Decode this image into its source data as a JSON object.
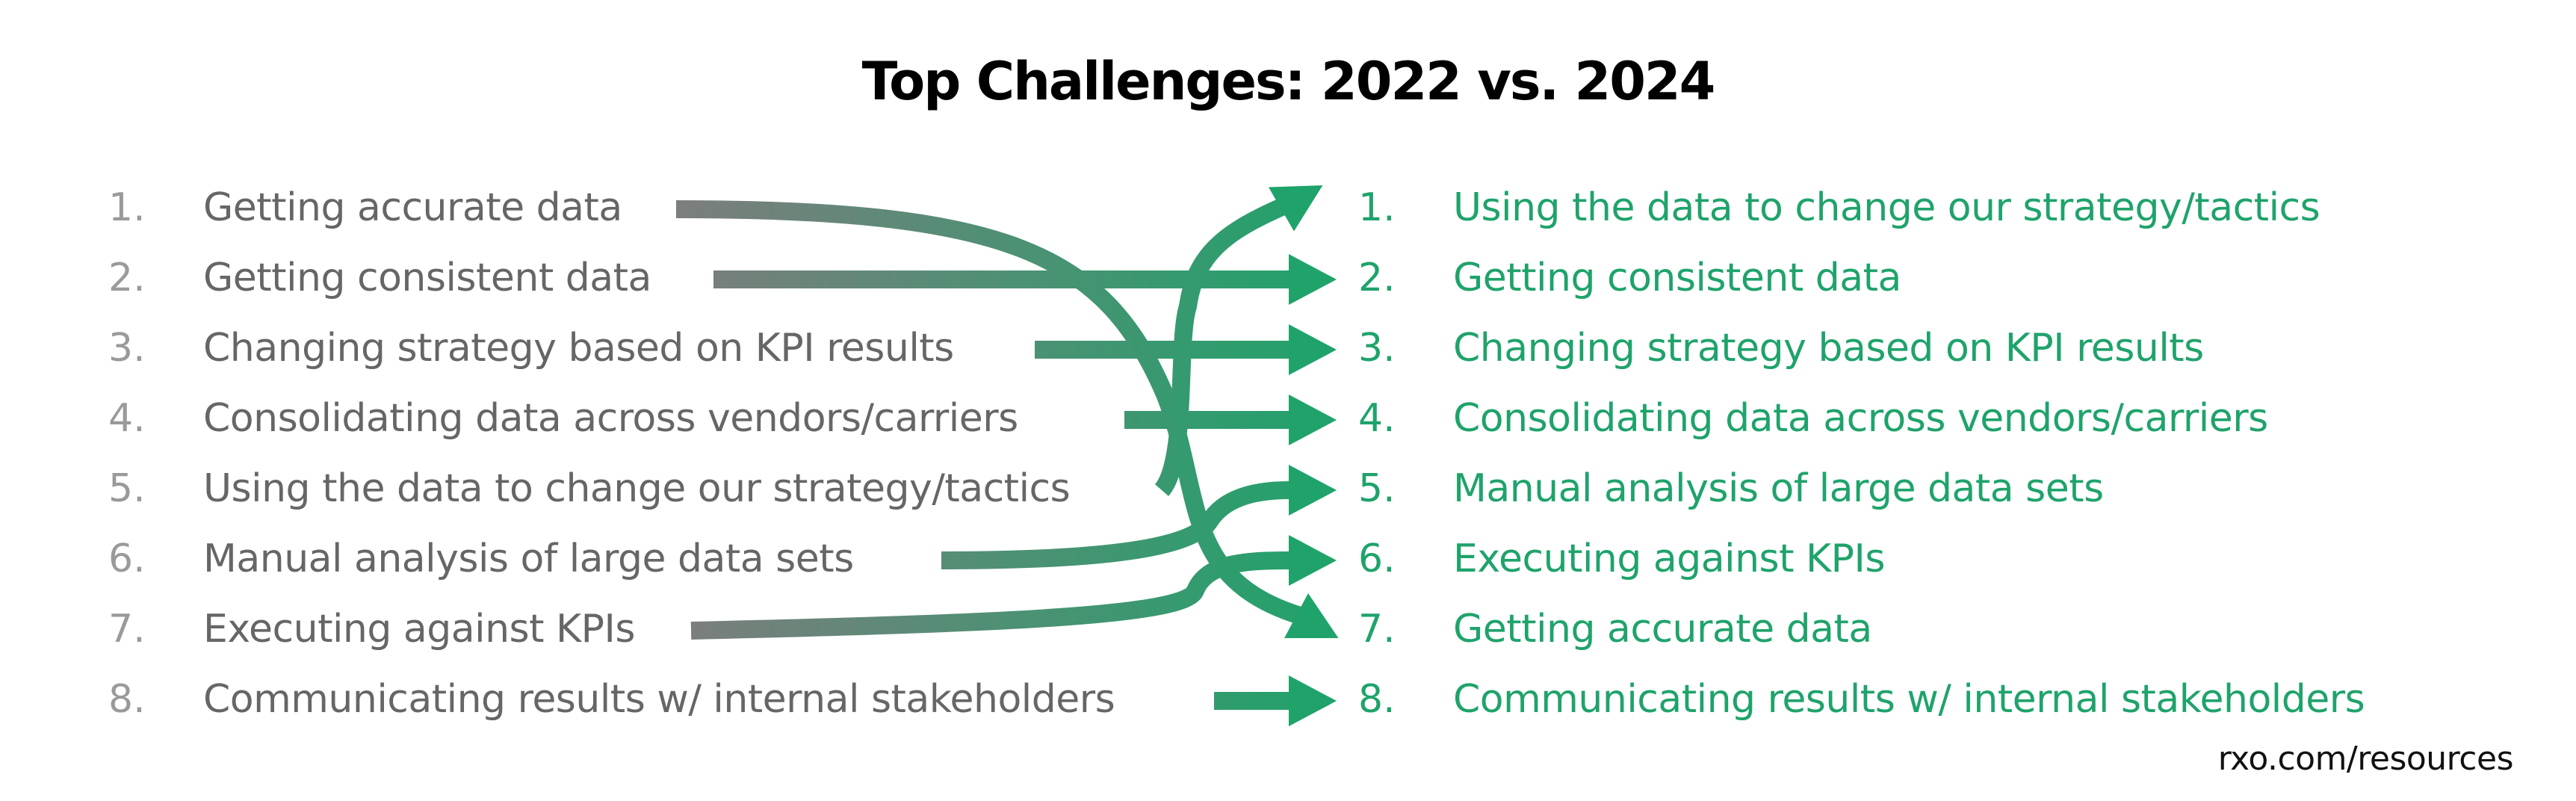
{
  "title": "Top Challenges: 2022 vs. 2024",
  "left_list": [
    {
      "num": "1.",
      "label": "Getting accurate data"
    },
    {
      "num": "2.",
      "label": "Getting consistent data"
    },
    {
      "num": "3.",
      "label": "Changing strategy based on KPI results"
    },
    {
      "num": "4.",
      "label": "Consolidating data across vendors/carriers"
    },
    {
      "num": "5.",
      "label": "Using the data to change our strategy/tactics"
    },
    {
      "num": "6.",
      "label": "Manual analysis of large data sets"
    },
    {
      "num": "7.",
      "label": "Executing against KPIs"
    },
    {
      "num": "8.",
      "label": "Communicating results w/ internal stakeholders"
    }
  ],
  "right_list": [
    {
      "num": "1.",
      "label": "Using the data to change our strategy/tactics"
    },
    {
      "num": "2.",
      "label": "Getting consistent data"
    },
    {
      "num": "3.",
      "label": "Changing strategy based on KPI results"
    },
    {
      "num": "4.",
      "label": "Consolidating data across vendors/carriers"
    },
    {
      "num": "5.",
      "label": "Manual analysis of large data sets"
    },
    {
      "num": "6.",
      "label": "Executing against KPIs"
    },
    {
      "num": "7.",
      "label": "Getting accurate data"
    },
    {
      "num": "8.",
      "label": "Communicating results w/ internal stakeholders"
    }
  ],
  "rank_changes": [
    {
      "from": 1,
      "to": 7
    },
    {
      "from": 2,
      "to": 2
    },
    {
      "from": 3,
      "to": 3
    },
    {
      "from": 4,
      "to": 4
    },
    {
      "from": 5,
      "to": 1
    },
    {
      "from": 6,
      "to": 5
    },
    {
      "from": 7,
      "to": 6
    },
    {
      "from": 8,
      "to": 8
    }
  ],
  "colors": {
    "title": "#000000",
    "left_text": "#666666",
    "left_number": "#9a9a9a",
    "right_text": "#1fa36b",
    "arrow_start": "#7d7d7d",
    "arrow_end": "#1fa36b"
  },
  "footer": "rxo.com/resources"
}
